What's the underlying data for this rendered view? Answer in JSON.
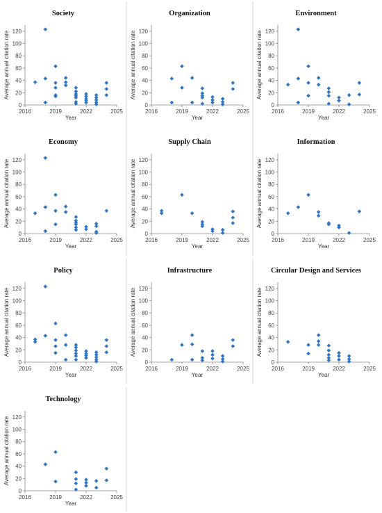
{
  "chart_data": [
    {
      "type": "scatter",
      "title": "Society",
      "xlabel": "Year",
      "ylabel": "Average annual citation rate",
      "xlim": [
        2016,
        2025
      ],
      "ylim": [
        0,
        130
      ],
      "xticks": [
        "2016",
        "2019",
        "2022",
        "2025"
      ],
      "yticks": [
        "0",
        "20",
        "40",
        "60",
        "80",
        "100",
        "120"
      ],
      "color": "#2e75c6",
      "points": [
        [
          2017,
          37
        ],
        [
          2018,
          123
        ],
        [
          2018,
          43
        ],
        [
          2018,
          4
        ],
        [
          2019,
          63
        ],
        [
          2019,
          36
        ],
        [
          2019,
          28
        ],
        [
          2019,
          16
        ],
        [
          2019,
          14
        ],
        [
          2020,
          44
        ],
        [
          2020,
          37
        ],
        [
          2020,
          32
        ],
        [
          2021,
          28
        ],
        [
          2021,
          22
        ],
        [
          2021,
          18
        ],
        [
          2021,
          15
        ],
        [
          2021,
          12
        ],
        [
          2021,
          5
        ],
        [
          2021,
          2
        ],
        [
          2022,
          18
        ],
        [
          2022,
          14
        ],
        [
          2022,
          10
        ],
        [
          2022,
          7
        ],
        [
          2022,
          4
        ],
        [
          2023,
          16
        ],
        [
          2023,
          12
        ],
        [
          2023,
          8
        ],
        [
          2023,
          4
        ],
        [
          2023,
          1
        ],
        [
          2024,
          36
        ],
        [
          2024,
          26
        ],
        [
          2024,
          16
        ]
      ]
    },
    {
      "type": "scatter",
      "title": "Organization",
      "xlabel": "Year",
      "ylabel": "Average annual citation rate",
      "xlim": [
        2016,
        2025
      ],
      "ylim": [
        0,
        130
      ],
      "xticks": [
        "2016",
        "2019",
        "2022",
        "2025"
      ],
      "yticks": [
        "0",
        "20",
        "40",
        "60",
        "80",
        "100",
        "120"
      ],
      "color": "#2e75c6",
      "points": [
        [
          2018,
          43
        ],
        [
          2018,
          4
        ],
        [
          2019,
          63
        ],
        [
          2019,
          28
        ],
        [
          2020,
          44
        ],
        [
          2020,
          4
        ],
        [
          2021,
          27
        ],
        [
          2021,
          19
        ],
        [
          2021,
          15
        ],
        [
          2021,
          12
        ],
        [
          2021,
          2
        ],
        [
          2022,
          13
        ],
        [
          2022,
          8
        ],
        [
          2022,
          4
        ],
        [
          2023,
          10
        ],
        [
          2023,
          5
        ],
        [
          2023,
          1
        ],
        [
          2024,
          36
        ],
        [
          2024,
          26
        ]
      ]
    },
    {
      "type": "scatter",
      "title": "Environment",
      "xlabel": "Year",
      "ylabel": "Average annual citation rate",
      "xlim": [
        2016,
        2025
      ],
      "ylim": [
        0,
        130
      ],
      "xticks": [
        "2016",
        "2019",
        "2022",
        "2025"
      ],
      "yticks": [
        "0",
        "20",
        "40",
        "60",
        "80",
        "100",
        "120"
      ],
      "color": "#2e75c6",
      "points": [
        [
          2017,
          33
        ],
        [
          2018,
          123
        ],
        [
          2018,
          43
        ],
        [
          2018,
          4
        ],
        [
          2019,
          63
        ],
        [
          2019,
          36
        ],
        [
          2019,
          15
        ],
        [
          2020,
          44
        ],
        [
          2020,
          33
        ],
        [
          2021,
          27
        ],
        [
          2021,
          21
        ],
        [
          2021,
          15
        ],
        [
          2021,
          2
        ],
        [
          2022,
          12
        ],
        [
          2022,
          7
        ],
        [
          2023,
          16
        ],
        [
          2023,
          1
        ],
        [
          2024,
          36
        ],
        [
          2024,
          17
        ]
      ]
    },
    {
      "type": "scatter",
      "title": "Economy",
      "xlabel": "Year",
      "ylabel": "Average annual citation rate",
      "xlim": [
        2016,
        2025
      ],
      "ylim": [
        0,
        130
      ],
      "xticks": [
        "2016",
        "2019",
        "2022",
        "2025"
      ],
      "yticks": [
        "0",
        "20",
        "40",
        "60",
        "80",
        "100",
        "120"
      ],
      "color": "#2e75c6",
      "points": [
        [
          2017,
          33
        ],
        [
          2018,
          123
        ],
        [
          2018,
          43
        ],
        [
          2018,
          4
        ],
        [
          2019,
          63
        ],
        [
          2019,
          37
        ],
        [
          2019,
          15
        ],
        [
          2020,
          44
        ],
        [
          2020,
          35
        ],
        [
          2021,
          27
        ],
        [
          2021,
          21
        ],
        [
          2021,
          18
        ],
        [
          2021,
          15
        ],
        [
          2021,
          10
        ],
        [
          2021,
          6
        ],
        [
          2022,
          11
        ],
        [
          2022,
          7
        ],
        [
          2023,
          16
        ],
        [
          2023,
          12
        ],
        [
          2023,
          3
        ],
        [
          2023,
          1
        ],
        [
          2024,
          37
        ]
      ]
    },
    {
      "type": "scatter",
      "title": "Supply Chain",
      "xlabel": "Year",
      "ylabel": "Average annual citation rate",
      "xlim": [
        2016,
        2025
      ],
      "ylim": [
        0,
        130
      ],
      "xticks": [
        "2016",
        "2019",
        "2022",
        "2025"
      ],
      "yticks": [
        "0",
        "20",
        "40",
        "60",
        "80",
        "100",
        "120"
      ],
      "color": "#2e75c6",
      "points": [
        [
          2017,
          37
        ],
        [
          2017,
          33
        ],
        [
          2019,
          63
        ],
        [
          2020,
          33
        ],
        [
          2021,
          19
        ],
        [
          2021,
          15
        ],
        [
          2021,
          12
        ],
        [
          2022,
          7
        ],
        [
          2022,
          4
        ],
        [
          2023,
          6
        ],
        [
          2023,
          1
        ],
        [
          2024,
          36
        ],
        [
          2024,
          26
        ],
        [
          2024,
          17
        ]
      ]
    },
    {
      "type": "scatter",
      "title": "Information",
      "xlabel": "Year",
      "ylabel": "Average annual citation rate",
      "xlim": [
        2016,
        2025
      ],
      "ylim": [
        0,
        130
      ],
      "xticks": [
        "2016",
        "2019",
        "2022",
        "2025"
      ],
      "yticks": [
        "0",
        "20",
        "40",
        "60",
        "80",
        "100",
        "120"
      ],
      "color": "#2e75c6",
      "points": [
        [
          2017,
          33
        ],
        [
          2018,
          43
        ],
        [
          2019,
          63
        ],
        [
          2020,
          35
        ],
        [
          2020,
          29
        ],
        [
          2021,
          17
        ],
        [
          2021,
          15
        ],
        [
          2022,
          13
        ],
        [
          2022,
          10
        ],
        [
          2023,
          1
        ],
        [
          2024,
          36
        ]
      ]
    },
    {
      "type": "scatter",
      "title": "Policy",
      "xlabel": "Year",
      "ylabel": "Average annual citation rate",
      "xlim": [
        2016,
        2025
      ],
      "ylim": [
        0,
        130
      ],
      "xticks": [
        "2016",
        "2019",
        "2022",
        "2025"
      ],
      "yticks": [
        "0",
        "20",
        "40",
        "60",
        "80",
        "100",
        "120"
      ],
      "color": "#2e75c6",
      "points": [
        [
          2017,
          37
        ],
        [
          2017,
          33
        ],
        [
          2018,
          123
        ],
        [
          2018,
          43
        ],
        [
          2019,
          63
        ],
        [
          2019,
          36
        ],
        [
          2019,
          26
        ],
        [
          2019,
          15
        ],
        [
          2020,
          44
        ],
        [
          2020,
          28
        ],
        [
          2020,
          4
        ],
        [
          2021,
          28
        ],
        [
          2021,
          24
        ],
        [
          2021,
          19
        ],
        [
          2021,
          14
        ],
        [
          2021,
          10
        ],
        [
          2021,
          4
        ],
        [
          2022,
          18
        ],
        [
          2022,
          14
        ],
        [
          2022,
          11
        ],
        [
          2022,
          7
        ],
        [
          2023,
          16
        ],
        [
          2023,
          12
        ],
        [
          2023,
          8
        ],
        [
          2023,
          4
        ],
        [
          2023,
          1
        ],
        [
          2024,
          36
        ],
        [
          2024,
          26
        ],
        [
          2024,
          16
        ]
      ]
    },
    {
      "type": "scatter",
      "title": "Infrastructure",
      "xlabel": "Year",
      "ylabel": "Average annual citation rate",
      "xlim": [
        2016,
        2025
      ],
      "ylim": [
        0,
        130
      ],
      "xticks": [
        "2016",
        "2019",
        "2022",
        "2025"
      ],
      "yticks": [
        "0",
        "20",
        "40",
        "60",
        "80",
        "100",
        "120"
      ],
      "color": "#2e75c6",
      "points": [
        [
          2018,
          4
        ],
        [
          2019,
          28
        ],
        [
          2020,
          44
        ],
        [
          2020,
          29
        ],
        [
          2020,
          4
        ],
        [
          2021,
          18
        ],
        [
          2021,
          7
        ],
        [
          2021,
          3
        ],
        [
          2022,
          18
        ],
        [
          2022,
          12
        ],
        [
          2022,
          6
        ],
        [
          2023,
          10
        ],
        [
          2023,
          5
        ],
        [
          2023,
          1
        ],
        [
          2024,
          36
        ],
        [
          2024,
          26
        ]
      ]
    },
    {
      "type": "scatter",
      "title": "Circular Design and Services",
      "xlabel": "Year",
      "ylabel": "Average annual citation rate",
      "xlim": [
        2016,
        2025
      ],
      "ylim": [
        0,
        130
      ],
      "xticks": [
        "2016",
        "2019",
        "2022",
        "2025"
      ],
      "yticks": [
        "0",
        "20",
        "40",
        "60",
        "80",
        "100",
        "120"
      ],
      "color": "#2e75c6",
      "points": [
        [
          2017,
          33
        ],
        [
          2019,
          28
        ],
        [
          2019,
          14
        ],
        [
          2020,
          44
        ],
        [
          2020,
          34
        ],
        [
          2020,
          28
        ],
        [
          2021,
          27
        ],
        [
          2021,
          19
        ],
        [
          2021,
          12
        ],
        [
          2021,
          7
        ],
        [
          2021,
          3
        ],
        [
          2022,
          15
        ],
        [
          2022,
          10
        ],
        [
          2022,
          4
        ],
        [
          2023,
          10
        ],
        [
          2023,
          5
        ],
        [
          2023,
          1
        ]
      ]
    },
    {
      "type": "scatter",
      "title": "Technology",
      "xlabel": "Year",
      "ylabel": "Average annual citation rate",
      "xlim": [
        2016,
        2025
      ],
      "ylim": [
        0,
        130
      ],
      "xticks": [
        "2016",
        "2019",
        "2022",
        "2025"
      ],
      "yticks": [
        "0",
        "20",
        "40",
        "60",
        "80",
        "100",
        "120"
      ],
      "color": "#2e75c6",
      "points": [
        [
          2018,
          43
        ],
        [
          2019,
          63
        ],
        [
          2019,
          15
        ],
        [
          2021,
          30
        ],
        [
          2021,
          19
        ],
        [
          2021,
          12
        ],
        [
          2021,
          2
        ],
        [
          2022,
          18
        ],
        [
          2022,
          13
        ],
        [
          2022,
          8
        ],
        [
          2023,
          16
        ],
        [
          2023,
          5
        ],
        [
          2024,
          36
        ],
        [
          2024,
          17
        ]
      ]
    }
  ]
}
